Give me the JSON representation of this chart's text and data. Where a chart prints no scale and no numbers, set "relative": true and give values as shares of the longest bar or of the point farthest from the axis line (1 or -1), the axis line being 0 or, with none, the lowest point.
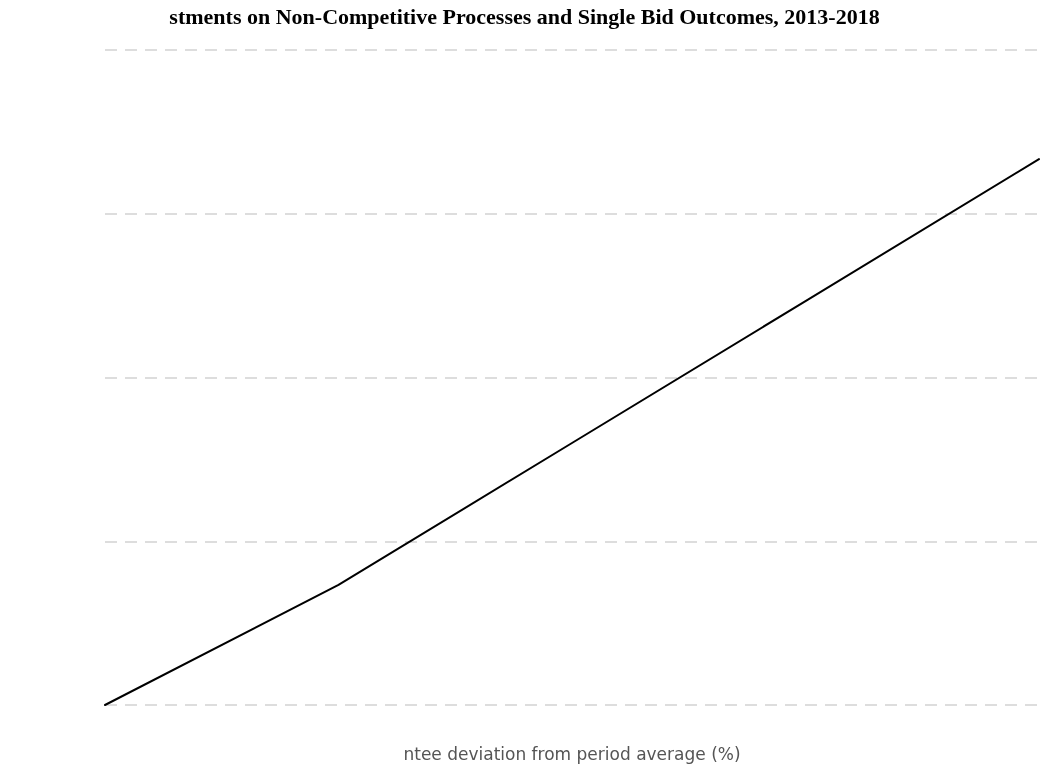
{
  "chart_data": {
    "type": "line",
    "title": "stments on Non-Competitive Processes and Single Bid Outcomes, 2013-2018",
    "xlabel": "ntee deviation from period average (%)",
    "categories": [
      null,
      null,
      null,
      null,
      null
    ],
    "relative": true,
    "grid": "y",
    "marker": "none",
    "line_style": "solid",
    "series": [
      {
        "color": "#000000",
        "values": [
          0,
          0.22,
          0.48,
          0.74,
          1
        ]
      }
    ]
  }
}
